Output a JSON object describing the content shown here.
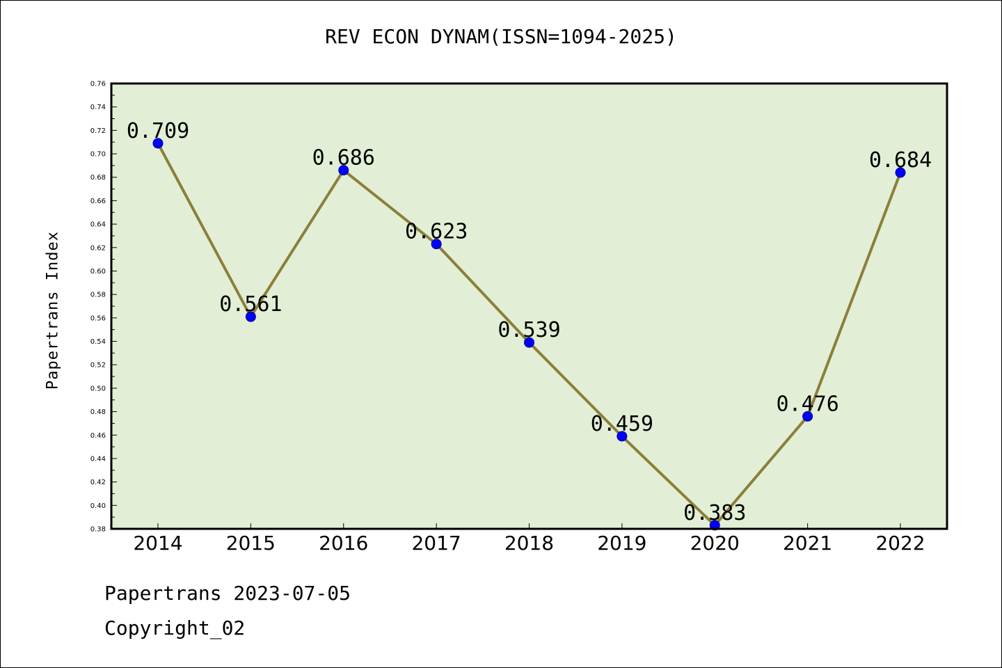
{
  "chart_data": {
    "type": "line",
    "title": "REV ECON DYNAM(ISSN=1094-2025)",
    "xlabel": "",
    "ylabel": "Papertrans Index",
    "categories": [
      "2014",
      "2015",
      "2016",
      "2017",
      "2018",
      "2019",
      "2020",
      "2021",
      "2022"
    ],
    "values": [
      0.709,
      0.561,
      0.686,
      0.623,
      0.539,
      0.459,
      0.383,
      0.476,
      0.684
    ],
    "value_labels": [
      "0.709",
      "0.561",
      "0.686",
      "0.623",
      "0.539",
      "0.459",
      "0.383",
      "0.476",
      "0.684"
    ],
    "ylim": [
      0.38,
      0.76
    ],
    "yticks": [
      "0.38",
      "0.40",
      "0.42",
      "0.44",
      "0.46",
      "0.48",
      "0.50",
      "0.52",
      "0.54",
      "0.56",
      "0.58",
      "0.60",
      "0.62",
      "0.64",
      "0.66",
      "0.68",
      "0.70",
      "0.72",
      "0.74",
      "0.76"
    ],
    "grid": false,
    "colors": {
      "plot_background": "#e2efd6",
      "line": "#8b7f3a",
      "marker": "#0000ff",
      "axis": "#000000"
    }
  },
  "footer": {
    "line1": "Papertrans 2023-07-05",
    "line2": "Copyright_02"
  }
}
